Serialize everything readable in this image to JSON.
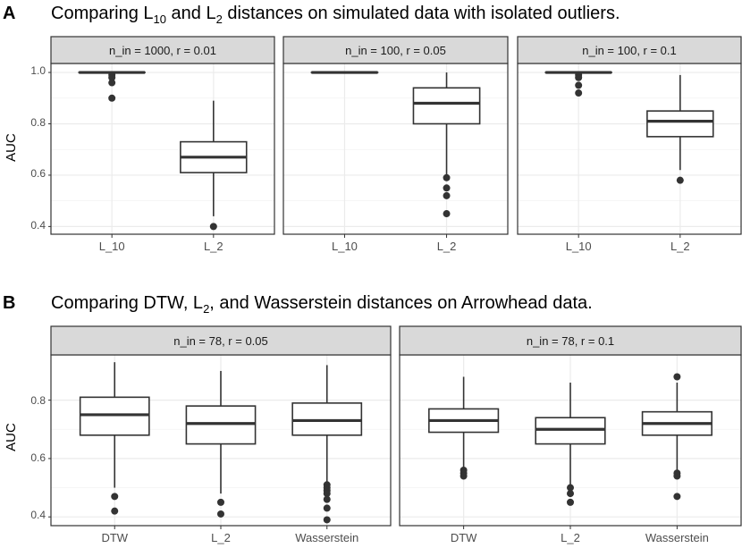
{
  "figure": {
    "panel_a": {
      "letter": "A",
      "title_parts": [
        "Comparing L",
        "10",
        " and L",
        "2",
        " distances on simulated data with isolated outliers."
      ]
    },
    "panel_b": {
      "letter": "B",
      "title_parts": [
        "Comparing DTW, L",
        "2",
        ", and Wasserstein distances on Arrowhead data."
      ]
    }
  },
  "chart_data": [
    {
      "type": "boxplot",
      "panel": "A",
      "facet": "n_in = 1000,  r = 0.01",
      "ylabel": "AUC",
      "ylim": [
        0.37,
        1.035
      ],
      "yticks": [
        0.4,
        0.6,
        0.8,
        1.0
      ],
      "ytick_labels": [
        "0.4",
        "0.6",
        "0.8",
        "1.0"
      ],
      "categories": [
        "L_10",
        "L_2"
      ],
      "boxes": [
        {
          "category": "L_10",
          "min": 1.0,
          "q1": 1.0,
          "median": 1.0,
          "q3": 1.0,
          "max": 1.0,
          "outliers": [
            0.99,
            0.98,
            0.96,
            0.9
          ]
        },
        {
          "category": "L_2",
          "min": 0.44,
          "q1": 0.61,
          "median": 0.67,
          "q3": 0.73,
          "max": 0.89,
          "outliers": [
            0.4
          ]
        }
      ]
    },
    {
      "type": "boxplot",
      "panel": "A",
      "facet": "n_in = 100,  r = 0.05",
      "ylabel": "AUC",
      "ylim": [
        0.37,
        1.035
      ],
      "yticks": [
        0.4,
        0.6,
        0.8,
        1.0
      ],
      "categories": [
        "L_10",
        "L_2"
      ],
      "boxes": [
        {
          "category": "L_10",
          "min": 1.0,
          "q1": 1.0,
          "median": 1.0,
          "q3": 1.0,
          "max": 1.0,
          "outliers": []
        },
        {
          "category": "L_2",
          "min": 0.6,
          "q1": 0.8,
          "median": 0.88,
          "q3": 0.94,
          "max": 1.0,
          "outliers": [
            0.59,
            0.55,
            0.52,
            0.45
          ]
        }
      ]
    },
    {
      "type": "boxplot",
      "panel": "A",
      "facet": "n_in = 100,  r = 0.1",
      "ylabel": "AUC",
      "ylim": [
        0.37,
        1.035
      ],
      "yticks": [
        0.4,
        0.6,
        0.8,
        1.0
      ],
      "categories": [
        "L_10",
        "L_2"
      ],
      "boxes": [
        {
          "category": "L_10",
          "min": 1.0,
          "q1": 1.0,
          "median": 1.0,
          "q3": 1.0,
          "max": 1.0,
          "outliers": [
            0.99,
            0.98,
            0.95,
            0.92
          ]
        },
        {
          "category": "L_2",
          "min": 0.62,
          "q1": 0.75,
          "median": 0.81,
          "q3": 0.85,
          "max": 0.99,
          "outliers": [
            0.58
          ]
        }
      ]
    },
    {
      "type": "boxplot",
      "panel": "B",
      "facet": "n_in = 78, r = 0.05",
      "ylabel": "AUC",
      "ylim": [
        0.37,
        0.955
      ],
      "yticks": [
        0.4,
        0.6,
        0.8
      ],
      "ytick_labels": [
        "0.4",
        "0.6",
        "0.8"
      ],
      "categories": [
        "DTW",
        "L_2",
        "Wasserstein"
      ],
      "boxes": [
        {
          "category": "DTW",
          "min": 0.5,
          "q1": 0.68,
          "median": 0.75,
          "q3": 0.81,
          "max": 0.93,
          "outliers": [
            0.47,
            0.42
          ]
        },
        {
          "category": "L_2",
          "min": 0.48,
          "q1": 0.65,
          "median": 0.72,
          "q3": 0.78,
          "max": 0.9,
          "outliers": [
            0.45,
            0.41
          ]
        },
        {
          "category": "Wasserstein",
          "min": 0.52,
          "q1": 0.68,
          "median": 0.73,
          "q3": 0.79,
          "max": 0.92,
          "outliers": [
            0.51,
            0.5,
            0.49,
            0.48,
            0.46,
            0.43,
            0.39
          ]
        }
      ]
    },
    {
      "type": "boxplot",
      "panel": "B",
      "facet": "n_in = 78, r = 0.1",
      "ylabel": "AUC",
      "ylim": [
        0.37,
        0.955
      ],
      "yticks": [
        0.4,
        0.6,
        0.8
      ],
      "categories": [
        "DTW",
        "L_2",
        "Wasserstein"
      ],
      "boxes": [
        {
          "category": "DTW",
          "min": 0.57,
          "q1": 0.69,
          "median": 0.73,
          "q3": 0.77,
          "max": 0.88,
          "outliers": [
            0.56,
            0.55,
            0.54
          ]
        },
        {
          "category": "L_2",
          "min": 0.51,
          "q1": 0.65,
          "median": 0.7,
          "q3": 0.74,
          "max": 0.86,
          "outliers": [
            0.5,
            0.48,
            0.45
          ]
        },
        {
          "category": "Wasserstein",
          "min": 0.56,
          "q1": 0.68,
          "median": 0.72,
          "q3": 0.76,
          "max": 0.86,
          "outliers": [
            0.88,
            0.55,
            0.54,
            0.47
          ]
        }
      ]
    }
  ]
}
